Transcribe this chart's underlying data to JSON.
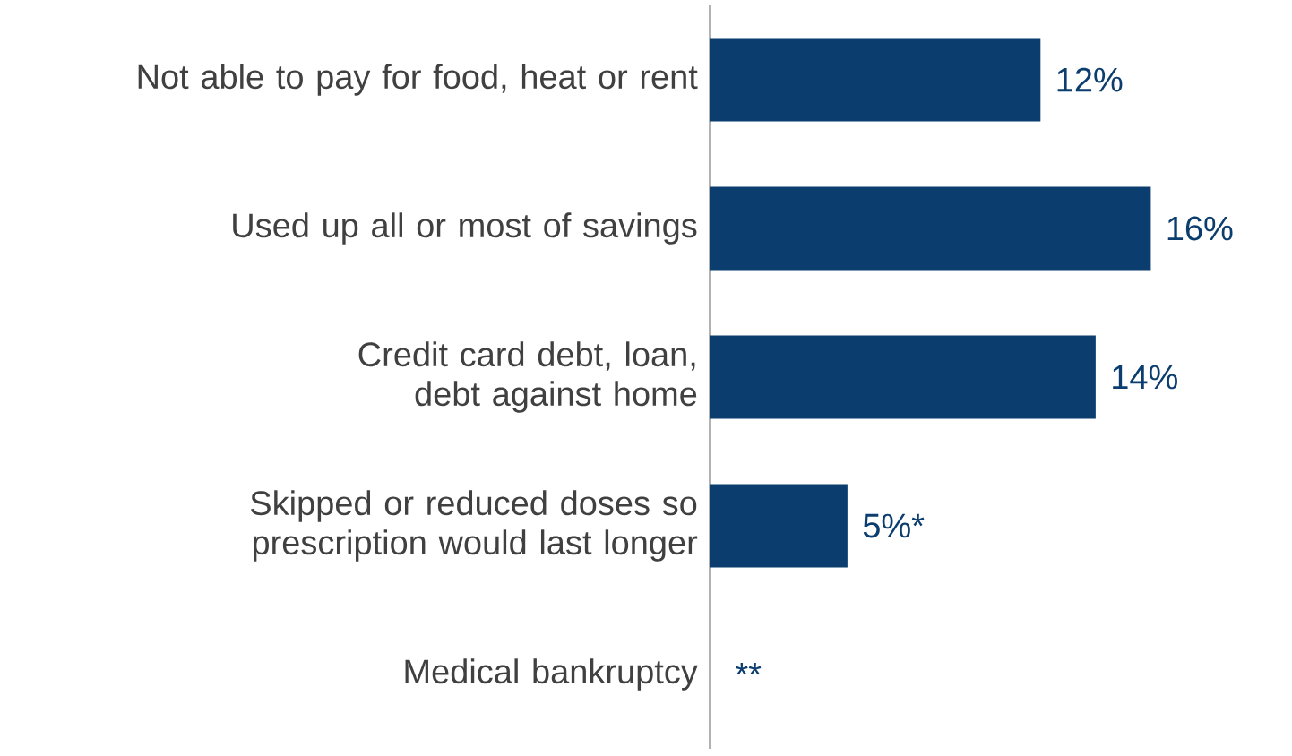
{
  "chart_data": {
    "type": "bar",
    "orientation": "horizontal",
    "categories": [
      "Not able to pay for food, heat or rent",
      "Used up all or most of savings",
      "Credit card debt, loan, debt against home",
      "Skipped or reduced doses so prescription would last longer",
      "Medical bankruptcy"
    ],
    "values": [
      12,
      16,
      14,
      5,
      null
    ],
    "value_labels": [
      "12%",
      "16%",
      "14%",
      "5%*",
      "**"
    ],
    "color": "#0b3d6f",
    "tick_labels": "y"
  }
}
